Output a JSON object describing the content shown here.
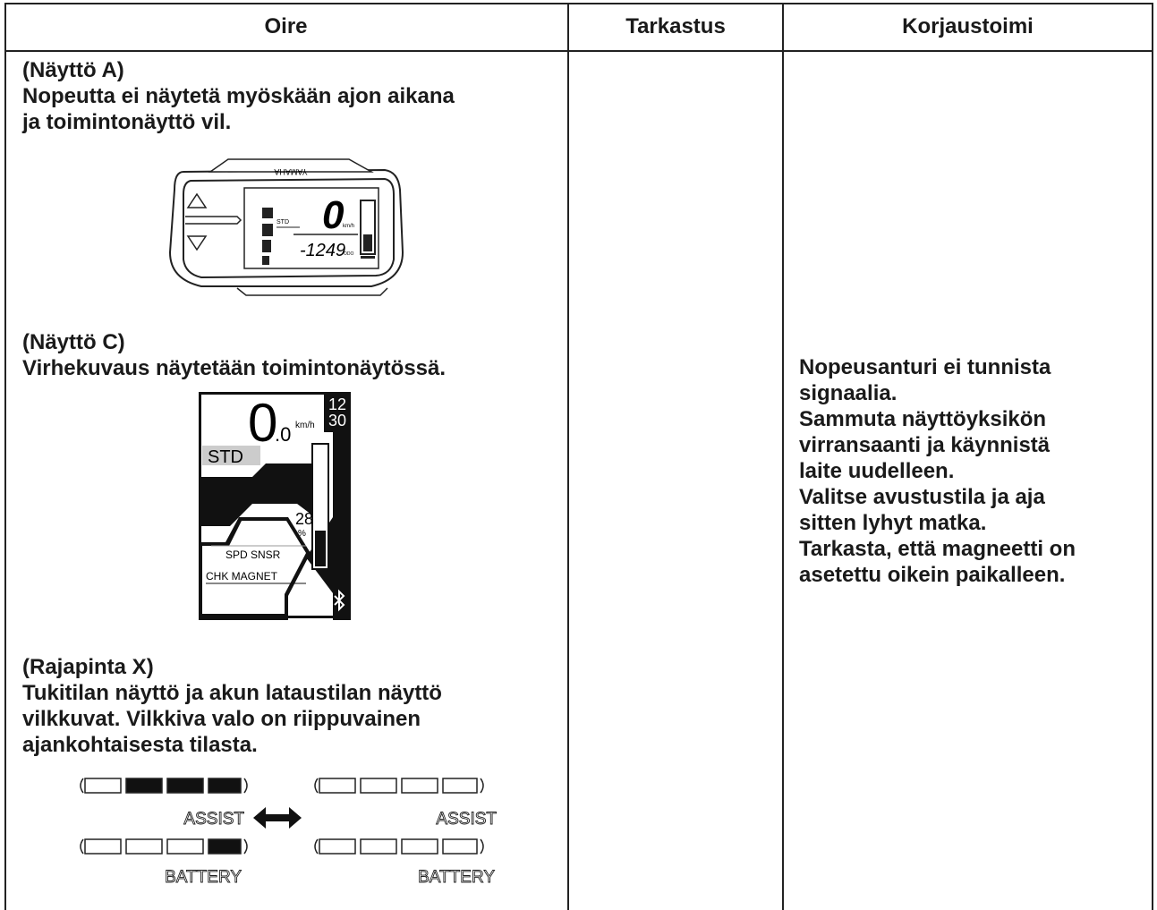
{
  "table": {
    "headers": [
      "Oire",
      "Tarkastus",
      "Korjaustoimi"
    ],
    "symptom": [
      {
        "title": "(Näyttö A)",
        "lines": [
          "Nopeutta ei näytetä myöskään ajon aikana",
          "ja toimintonäyttö vil."
        ]
      },
      {
        "title": "(Näyttö C)",
        "lines": [
          "Virhekuvaus näytetään toimintonäytössä."
        ]
      },
      {
        "title": "(Rajapinta X)",
        "lines": [
          "Tukitilan näyttö ja akun lataustilan näyttö",
          "vilkkuvat. Vilkkiva valo on riippuvainen",
          "ajankohtaisesta tilasta."
        ]
      }
    ],
    "remedy": [
      "Nopeusanturi ei tunnista",
      "signaalia.",
      "Sammuta näyttöyksikön",
      "virransaanti ja käynnistä",
      "laite uudelleen.",
      "Valitse avustustila ja aja",
      "sitten lyhyt matka.",
      "Tarkasta, että magneetti on",
      "asetettu oikein paikalleen."
    ]
  },
  "figures": {
    "display_a": {
      "brand": "YAMAHA",
      "mode": "STD",
      "speed": "0",
      "unit": "km/h",
      "odo": "-1249",
      "odo_label": "ODO"
    },
    "display_c": {
      "speed": "0",
      "decimal": ".0",
      "unit": "km/h",
      "hour": "12",
      "minute": "30",
      "mode": "STD",
      "battery": "28",
      "percent": "%",
      "error_1": "SPD SNSR",
      "error_2": "CHK MAGNET"
    },
    "interface_x": [
      {
        "assist": "ASSIST",
        "battery": "BATTERY"
      },
      {
        "assist": "ASSIST",
        "battery": "BATTERY"
      }
    ]
  }
}
